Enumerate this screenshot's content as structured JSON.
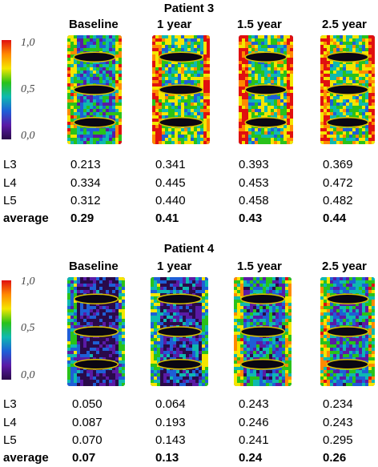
{
  "panels": [
    {
      "title": "Patient 3",
      "timepoints": [
        "Baseline",
        "1 year",
        "1.5 year",
        "2.5 year"
      ],
      "colorbar_ticks": [
        "1,0",
        "0,5",
        "0,0"
      ],
      "rows": [
        {
          "label": "L3",
          "values": [
            "0.213",
            "0.341",
            "0.393",
            "0.369"
          ]
        },
        {
          "label": "L4",
          "values": [
            "0.334",
            "0.445",
            "0.453",
            "0.472"
          ]
        },
        {
          "label": "L5",
          "values": [
            "0.312",
            "0.440",
            "0.458",
            "0.482"
          ]
        },
        {
          "label": "average",
          "values": [
            "0.29",
            "0.41",
            "0.43",
            "0.44"
          ]
        }
      ]
    },
    {
      "title": "Patient 4",
      "timepoints": [
        "Baseline",
        "1 year",
        "1.5 year",
        "2.5 year"
      ],
      "colorbar_ticks": [
        "1,0",
        "0,5",
        "0,0"
      ],
      "rows": [
        {
          "label": "L3",
          "values": [
            "0.050",
            "0.064",
            "0.243",
            "0.234"
          ]
        },
        {
          "label": "L4",
          "values": [
            "0.087",
            "0.193",
            "0.246",
            "0.243"
          ]
        },
        {
          "label": "L5",
          "values": [
            "0.070",
            "0.143",
            "0.241",
            "0.295"
          ]
        },
        {
          "label": "average",
          "values": [
            "0.07",
            "0.13",
            "0.24",
            "0.26"
          ]
        }
      ]
    }
  ],
  "colormap": [
    "#e01010",
    "#ff8a00",
    "#f4e600",
    "#29c21a",
    "#0eb9b0",
    "#1e5fd6",
    "#5a1aa6",
    "#2a0a4a"
  ]
}
